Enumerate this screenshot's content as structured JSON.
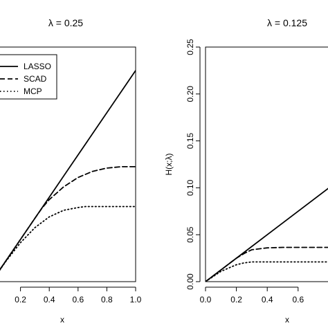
{
  "chart_data": [
    {
      "type": "line",
      "title": "λ = 0.25",
      "xlabel": "x",
      "ylabel": "",
      "xlim": [
        0,
        1.0
      ],
      "ylim": [
        0,
        0.5
      ],
      "x_ticks": [
        "0.2",
        "0.4",
        "0.6",
        "0.8",
        "1.0"
      ],
      "y_ticks": [],
      "legend": {
        "position": "top-left",
        "entries": [
          "LASSO",
          "SCAD",
          "MCP"
        ]
      },
      "series": [
        {
          "name": "LASSO",
          "style": "solid",
          "x": [
            0,
            0.1,
            0.2,
            0.3,
            0.4,
            0.5,
            0.6,
            0.7,
            0.8,
            0.9,
            1.0
          ],
          "y": [
            0,
            0.045,
            0.09,
            0.135,
            0.18,
            0.225,
            0.27,
            0.315,
            0.36,
            0.405,
            0.45
          ]
        },
        {
          "name": "SCAD",
          "style": "dashed",
          "x": [
            0,
            0.1,
            0.2,
            0.3,
            0.35,
            0.4,
            0.5,
            0.6,
            0.7,
            0.8,
            0.9,
            1.0
          ],
          "y": [
            0,
            0.045,
            0.09,
            0.135,
            0.157,
            0.175,
            0.202,
            0.222,
            0.235,
            0.242,
            0.245,
            0.245
          ]
        },
        {
          "name": "MCP",
          "style": "dotted",
          "x": [
            0,
            0.1,
            0.2,
            0.3,
            0.4,
            0.5,
            0.6,
            0.65,
            0.8,
            1.0
          ],
          "y": [
            0,
            0.044,
            0.083,
            0.115,
            0.138,
            0.152,
            0.158,
            0.16,
            0.16,
            0.16
          ]
        }
      ]
    },
    {
      "type": "line",
      "title": "λ = 0.125",
      "xlabel": "x",
      "ylabel": "H(x;λ)",
      "xlim": [
        0,
        1.0
      ],
      "ylim": [
        0,
        0.25
      ],
      "x_ticks": [
        "0.0",
        "0.2",
        "0.4",
        "0.6"
      ],
      "y_ticks": [
        "0.00",
        "0.05",
        "0.10",
        "0.15",
        "0.20",
        "0.25"
      ],
      "series": [
        {
          "name": "LASSO",
          "style": "solid",
          "x": [
            0,
            0.2,
            0.4,
            0.6,
            0.8,
            1.0
          ],
          "y": [
            0,
            0.025,
            0.05,
            0.075,
            0.1,
            0.125
          ]
        },
        {
          "name": "SCAD",
          "style": "dashed",
          "x": [
            0,
            0.1,
            0.2,
            0.25,
            0.3,
            0.4,
            0.5,
            0.6,
            0.8,
            1.0
          ],
          "y": [
            0,
            0.0125,
            0.025,
            0.03,
            0.034,
            0.036,
            0.0365,
            0.0365,
            0.0365,
            0.0365
          ]
        },
        {
          "name": "MCP",
          "style": "dotted",
          "x": [
            0,
            0.1,
            0.2,
            0.25,
            0.3,
            0.4,
            0.6,
            0.8,
            1.0
          ],
          "y": [
            0,
            0.011,
            0.018,
            0.02,
            0.021,
            0.021,
            0.021,
            0.021,
            0.021
          ]
        }
      ]
    }
  ]
}
